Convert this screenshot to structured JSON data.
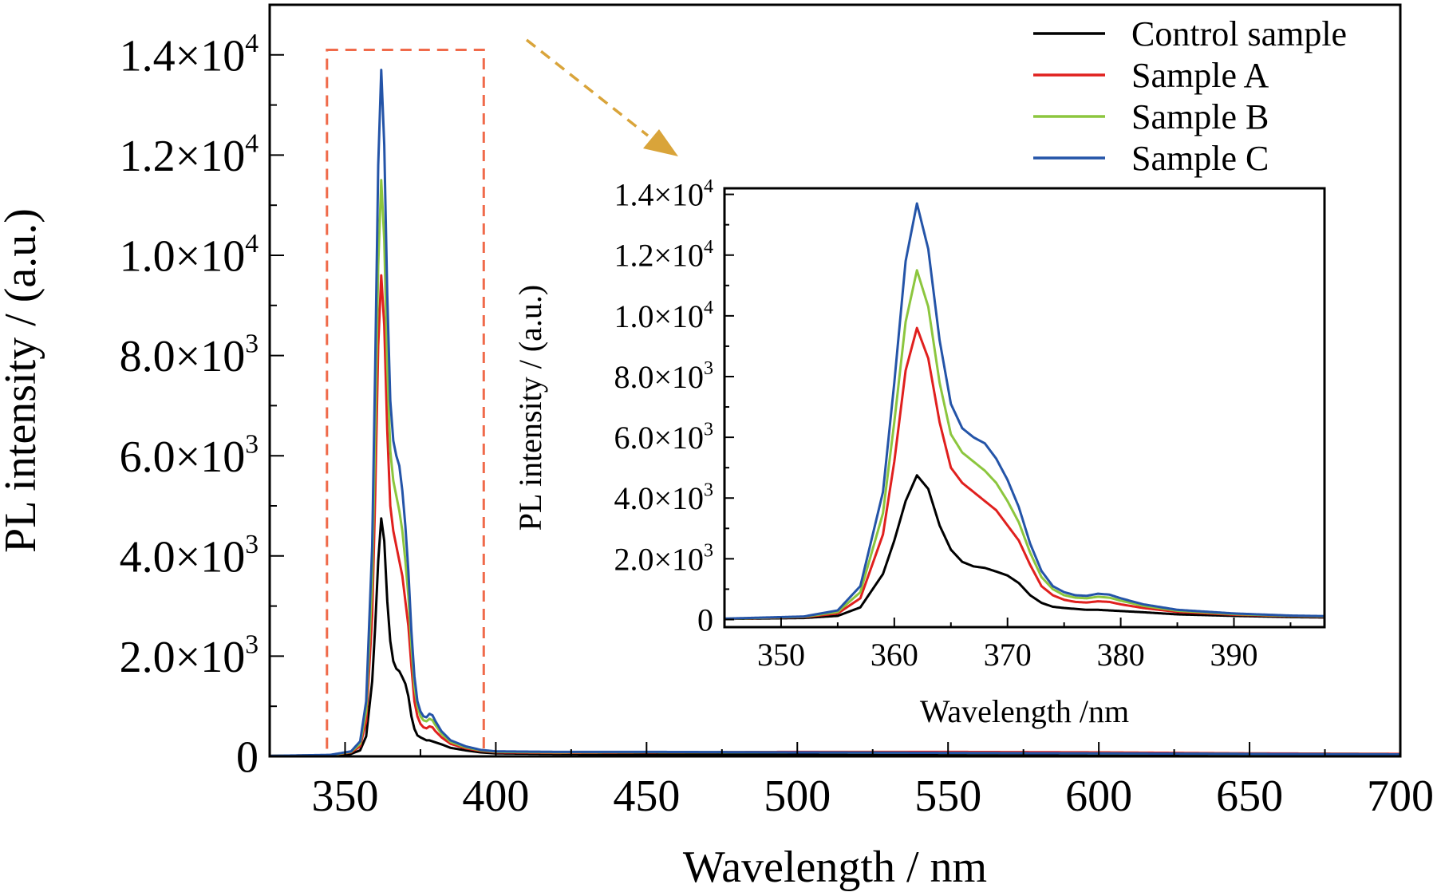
{
  "chart_data": [
    {
      "id": "main",
      "type": "line",
      "title": "",
      "xlabel": "Wavelength / nm",
      "ylabel": "PL intensity / (a.u.)",
      "xlim": [
        325,
        700
      ],
      "ylim": [
        0,
        15000
      ],
      "xticks": [
        350,
        400,
        450,
        500,
        550,
        600,
        650,
        700
      ],
      "xtick_labels": [
        "350",
        "400",
        "450",
        "500",
        "550",
        "600",
        "650",
        "700"
      ],
      "yticks": [
        0,
        2000,
        4000,
        6000,
        8000,
        10000,
        12000,
        14000
      ],
      "ytick_labels": [
        {
          "mant": "0",
          "exp": ""
        },
        {
          "mant": "2.0×10",
          "exp": "3"
        },
        {
          "mant": "4.0×10",
          "exp": "3"
        },
        {
          "mant": "6.0×10",
          "exp": "3"
        },
        {
          "mant": "8.0×10",
          "exp": "3"
        },
        {
          "mant": "1.0×10",
          "exp": "4"
        },
        {
          "mant": "1.2×10",
          "exp": "4"
        },
        {
          "mant": "1.4×10",
          "exp": "4"
        }
      ],
      "grid": false,
      "legend": {
        "position": "top-right",
        "entries": [
          "Control sample",
          "Sample A",
          "Sample B",
          "Sample C"
        ]
      },
      "highlight_box": {
        "x": [
          344,
          396
        ],
        "y": [
          0,
          14100
        ],
        "color": "#f06a4a"
      },
      "arrow_color": "#d9a43a",
      "series": [
        {
          "name": "Control sample",
          "color": "#000000",
          "x": [
            325,
            345,
            352,
            355,
            357,
            359,
            360,
            361,
            362,
            363,
            364,
            365,
            366,
            367,
            368,
            369,
            370,
            371,
            372,
            373,
            374,
            375,
            376,
            377,
            378,
            379,
            380,
            382,
            385,
            390,
            395,
            400,
            420,
            450,
            500,
            550,
            600,
            650,
            700
          ],
          "y": [
            10,
            20,
            50,
            120,
            400,
            1500,
            2600,
            3900,
            4750,
            4300,
            3100,
            2300,
            1900,
            1750,
            1700,
            1580,
            1450,
            1200,
            800,
            550,
            420,
            380,
            350,
            320,
            320,
            300,
            280,
            240,
            170,
            120,
            80,
            60,
            50,
            45,
            40,
            40,
            35,
            30,
            30
          ]
        },
        {
          "name": "Sample A",
          "color": "#e0201e",
          "x": [
            325,
            345,
            352,
            355,
            357,
            359,
            360,
            361,
            362,
            363,
            364,
            365,
            366,
            367,
            368,
            369,
            370,
            371,
            372,
            373,
            374,
            375,
            376,
            377,
            378,
            379,
            380,
            382,
            385,
            390,
            395,
            400,
            420,
            450,
            500,
            550,
            600,
            650,
            700
          ],
          "y": [
            10,
            25,
            80,
            200,
            700,
            2800,
            5200,
            8200,
            9600,
            8600,
            6500,
            5000,
            4500,
            4200,
            3900,
            3600,
            3100,
            2600,
            1800,
            1100,
            800,
            650,
            580,
            560,
            600,
            580,
            500,
            380,
            250,
            160,
            110,
            80,
            70,
            80,
            90,
            90,
            80,
            60,
            50
          ]
        },
        {
          "name": "Sample B",
          "color": "#8cc63e",
          "x": [
            325,
            345,
            352,
            355,
            357,
            359,
            360,
            361,
            362,
            363,
            364,
            365,
            366,
            367,
            368,
            369,
            370,
            371,
            372,
            373,
            374,
            375,
            376,
            377,
            378,
            379,
            380,
            382,
            385,
            390,
            395,
            400,
            420,
            450,
            500,
            550,
            600,
            650,
            700
          ],
          "y": [
            10,
            25,
            90,
            250,
            900,
            3500,
            6500,
            9800,
            11500,
            10300,
            7800,
            6100,
            5500,
            5200,
            4900,
            4500,
            3900,
            3200,
            2200,
            1400,
            1000,
            800,
            720,
            700,
            750,
            720,
            620,
            450,
            290,
            180,
            120,
            90,
            80,
            85,
            80,
            70,
            60,
            50,
            40
          ]
        },
        {
          "name": "Sample C",
          "color": "#2454a8",
          "x": [
            325,
            345,
            352,
            355,
            357,
            359,
            360,
            361,
            362,
            363,
            364,
            365,
            366,
            367,
            368,
            369,
            370,
            371,
            372,
            373,
            374,
            375,
            376,
            377,
            378,
            379,
            380,
            382,
            385,
            390,
            395,
            400,
            420,
            450,
            500,
            550,
            600,
            650,
            700
          ],
          "y": [
            10,
            30,
            100,
            300,
            1100,
            4200,
            7800,
            11800,
            13700,
            12200,
            9200,
            7100,
            6300,
            6000,
            5800,
            5300,
            4600,
            3700,
            2500,
            1600,
            1100,
            900,
            800,
            780,
            850,
            820,
            700,
            500,
            320,
            200,
            130,
            100,
            90,
            90,
            80,
            70,
            60,
            50,
            40
          ]
        }
      ]
    },
    {
      "id": "inset",
      "type": "line",
      "title": "",
      "xlabel": "Wavelength /nm",
      "ylabel": "PL intensity / (a.u.)",
      "xlim": [
        345,
        398
      ],
      "ylim": [
        -250,
        14200
      ],
      "xticks": [
        350,
        360,
        370,
        380,
        390
      ],
      "xtick_labels": [
        "350",
        "360",
        "370",
        "380",
        "390"
      ],
      "yticks": [
        0,
        2000,
        4000,
        6000,
        8000,
        10000,
        12000,
        14000
      ],
      "ytick_labels": [
        {
          "mant": "0",
          "exp": ""
        },
        {
          "mant": "2.0×10",
          "exp": "3"
        },
        {
          "mant": "4.0×10",
          "exp": "3"
        },
        {
          "mant": "6.0×10",
          "exp": "3"
        },
        {
          "mant": "8.0×10",
          "exp": "3"
        },
        {
          "mant": "1.0×10",
          "exp": "4"
        },
        {
          "mant": "1.2×10",
          "exp": "4"
        },
        {
          "mant": "1.4×10",
          "exp": "4"
        }
      ],
      "grid": false,
      "series_from": "main"
    }
  ]
}
